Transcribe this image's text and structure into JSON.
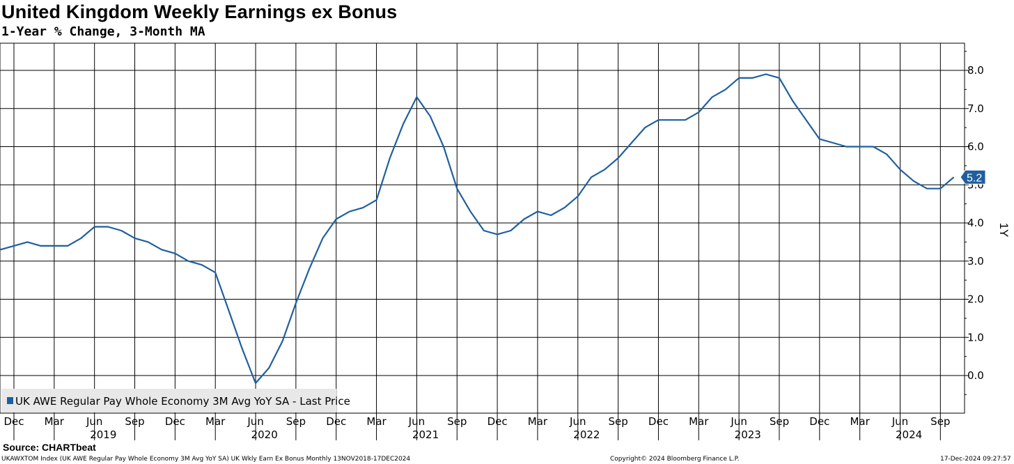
{
  "header": {
    "title": "United Kingdom Weekly Earnings ex Bonus",
    "subtitle": "1-Year % Change, 3-Month MA"
  },
  "footer": {
    "source": "Source: CHARTbeat",
    "index_info": "UKAWXTOM Index (UK AWE Regular Pay Whole Economy 3M Avg YoY SA) UK Wkly Earn Ex Bonus  Monthly 13NOV2018-17DEC2024",
    "copyright": "Copyright© 2024 Bloomberg Finance L.P.",
    "timestamp": "17-Dec-2024 09:27:57"
  },
  "colors": {
    "series": "#1f5f9e",
    "grid": "#000000",
    "legend_bg": "#e8e8e8"
  },
  "chart_data": {
    "type": "line",
    "title": "United Kingdom Weekly Earnings ex Bonus",
    "subtitle": "1-Year % Change, 3-Month MA",
    "ylabel": "1Y",
    "ylim": [
      -1.0,
      8.6
    ],
    "yticks": [
      "0.0",
      "1.0",
      "2.0",
      "3.0",
      "4.0",
      "5.0",
      "6.0",
      "7.0",
      "8.0"
    ],
    "xlim": [
      "2018-11",
      "2024-11"
    ],
    "month_ticks": [
      "Dec",
      "Mar",
      "Jun",
      "Sep",
      "Dec",
      "Mar",
      "Jun",
      "Sep",
      "Dec",
      "Mar",
      "Jun",
      "Sep",
      "Dec",
      "Mar",
      "Jun",
      "Sep",
      "Dec",
      "Mar",
      "Jun",
      "Sep",
      "Dec",
      "Mar",
      "Jun",
      "Sep"
    ],
    "year_labels": [
      "2019",
      "2020",
      "2021",
      "2022",
      "2023",
      "2024"
    ],
    "grid": true,
    "legend": "bottom-left",
    "series": [
      {
        "name": "UK AWE Regular Pay Whole Economy 3M Avg YoY SA - Last Price",
        "last_value": "5.2",
        "x": [
          "2018-11",
          "2018-12",
          "2019-01",
          "2019-02",
          "2019-03",
          "2019-04",
          "2019-05",
          "2019-06",
          "2019-07",
          "2019-08",
          "2019-09",
          "2019-10",
          "2019-11",
          "2019-12",
          "2020-01",
          "2020-02",
          "2020-03",
          "2020-04",
          "2020-05",
          "2020-06",
          "2020-07",
          "2020-08",
          "2020-09",
          "2020-10",
          "2020-11",
          "2020-12",
          "2021-01",
          "2021-02",
          "2021-03",
          "2021-04",
          "2021-05",
          "2021-06",
          "2021-07",
          "2021-08",
          "2021-09",
          "2021-10",
          "2021-11",
          "2021-12",
          "2022-01",
          "2022-02",
          "2022-03",
          "2022-04",
          "2022-05",
          "2022-06",
          "2022-07",
          "2022-08",
          "2022-09",
          "2022-10",
          "2022-11",
          "2022-12",
          "2023-01",
          "2023-02",
          "2023-03",
          "2023-04",
          "2023-05",
          "2023-06",
          "2023-07",
          "2023-08",
          "2023-09",
          "2023-10",
          "2023-11",
          "2023-12",
          "2024-01",
          "2024-02",
          "2024-03",
          "2024-04",
          "2024-05",
          "2024-06",
          "2024-07",
          "2024-08",
          "2024-09",
          "2024-10"
        ],
        "values": [
          3.3,
          3.4,
          3.5,
          3.4,
          3.4,
          3.4,
          3.6,
          3.9,
          3.9,
          3.8,
          3.6,
          3.5,
          3.3,
          3.2,
          3.0,
          2.9,
          2.7,
          1.7,
          0.7,
          -0.2,
          0.2,
          0.9,
          1.9,
          2.8,
          3.6,
          4.1,
          4.3,
          4.4,
          4.6,
          5.7,
          6.6,
          7.3,
          6.8,
          6.0,
          4.9,
          4.3,
          3.8,
          3.7,
          3.8,
          4.1,
          4.3,
          4.2,
          4.4,
          4.7,
          5.2,
          5.4,
          5.7,
          6.1,
          6.5,
          6.7,
          6.7,
          6.7,
          6.9,
          7.3,
          7.5,
          7.8,
          7.8,
          7.9,
          7.8,
          7.2,
          6.7,
          6.2,
          6.1,
          6.0,
          6.0,
          6.0,
          5.8,
          5.4,
          5.1,
          4.9,
          4.9,
          5.2
        ]
      }
    ]
  }
}
